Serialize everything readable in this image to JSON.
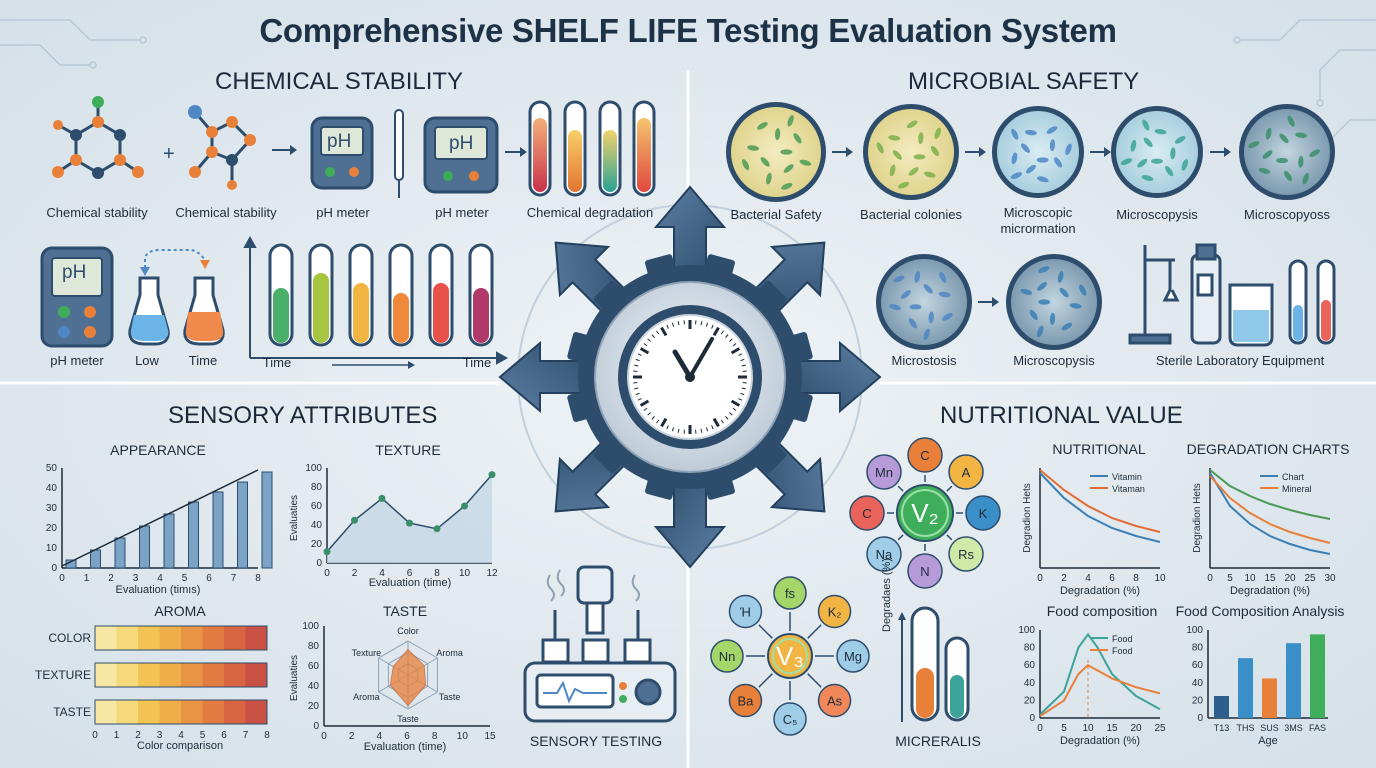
{
  "title": "Comprehensive SHELF LIFE Testing Evaluation System",
  "colors": {
    "background": "#e4ebf0",
    "navy": "#2e4d6d",
    "accent_blue": "#4f86c6",
    "accent_orange": "#e9803a",
    "accent_green": "#3fae5a"
  },
  "chemical": {
    "heading": "CHEMICAL STABILITY",
    "row1": [
      "Chemical stability",
      "Chemical stability",
      "pH meter",
      "pH meter",
      "Chemical degradation"
    ],
    "ph_text": "pH",
    "row2": [
      "pH meter",
      "Low",
      "Time"
    ],
    "time_left": "Time",
    "time_right": "Time"
  },
  "microbial": {
    "heading": "MICROBIAL SAFETY",
    "row1": [
      "Bacterial Safety",
      "Bacterial colonies",
      "Microscopic",
      "micrormation",
      "Microscopysis",
      "Microscopyoss"
    ],
    "row2": [
      "Microstosis",
      "Microscopysis",
      "Sterile Laboratory Equipment"
    ]
  },
  "sensory": {
    "heading": "SENSORY ATTRIBUTES",
    "footer": "SENSORY TESTING"
  },
  "nutrition": {
    "heading": "NUTRITIONAL VALUE",
    "vitamins": [
      "C",
      "A",
      "K",
      "Rs",
      "N",
      "Na",
      "C",
      "Mn"
    ],
    "vitamin_center": "V₂",
    "minerals": [
      "fs",
      "K₂",
      "Mg",
      "As",
      "C₅",
      "Ba",
      "Nn",
      "Ή"
    ],
    "mineral_center": "V₃",
    "tube_ylabel": "Degradaes (%)",
    "tube_label": "MICRERALIS"
  },
  "chart_data": [
    {
      "type": "bar",
      "title": "APPEARANCE",
      "xlabel": "Evaluation (timıs)",
      "x_ticks": [
        "0",
        "1",
        "2",
        "3",
        "4",
        "5",
        "6",
        "7",
        "8"
      ],
      "y_ticks": [
        "50",
        "40",
        "30",
        "20",
        "10",
        "0"
      ],
      "ylim": [
        0,
        50
      ],
      "values": [
        4,
        9,
        15,
        21,
        27,
        33,
        38,
        43,
        48
      ]
    },
    {
      "type": "area",
      "title": "TEXTURE",
      "ylabel": "Evaluaties",
      "xlabel": "Evaluation (time)",
      "x_ticks": [
        "0",
        "2",
        "4",
        "6",
        "8",
        "10",
        "12"
      ],
      "y_ticks": [
        "100",
        "80",
        "60",
        "40",
        "20",
        "0"
      ],
      "ylim": [
        0,
        100
      ],
      "x": [
        0,
        2,
        4,
        6,
        8,
        10,
        12
      ],
      "values": [
        12,
        45,
        68,
        42,
        36,
        60,
        93
      ]
    },
    {
      "type": "heatmap",
      "title": "AROMA",
      "rows": [
        "COLOR",
        "TEXTURE",
        "TASTE"
      ],
      "x_ticks": [
        "0",
        "1",
        "2",
        "3",
        "4",
        "5",
        "6",
        "7",
        "8"
      ],
      "xlabel": "Color comparison",
      "colors": [
        "#f7e7a4",
        "#f6d97a",
        "#f2c454",
        "#eeae49",
        "#e99444",
        "#e27c43",
        "#d76541",
        "#c85044"
      ]
    },
    {
      "type": "radar",
      "title": "TASTE",
      "ylabel": "Evaluaties",
      "xlabel": "Evaluation (time)",
      "x_ticks": [
        "0",
        "2",
        "4",
        "6",
        "8",
        "10",
        "15"
      ],
      "y_ticks": [
        "100",
        "80",
        "60",
        "40",
        "20",
        "0"
      ],
      "axes": [
        "Color",
        "Aroma",
        "Taste",
        "Taste",
        "Aroma",
        "Texture"
      ],
      "values": [
        0.75,
        0.55,
        0.6,
        0.9,
        0.6,
        0.5
      ]
    },
    {
      "type": "line",
      "title": "NUTRITIONAL",
      "ylabel": "Degradion Hets",
      "xlabel": "Degradation (%)",
      "x_ticks": [
        "0",
        "2",
        "4",
        "6",
        "8",
        "10"
      ],
      "series": [
        {
          "name": "Vitamin",
          "color": "#3a7fb5",
          "values": [
            95,
            70,
            52,
            40,
            32,
            26
          ]
        },
        {
          "name": "Vitaman",
          "color": "#e36a33",
          "values": [
            98,
            78,
            62,
            50,
            42,
            36
          ]
        }
      ]
    },
    {
      "type": "line",
      "title": "DEGRADATION CHARTS",
      "ylabel": "Degradion Hets",
      "xlabel": "Degradation (%)",
      "x_ticks": [
        "0",
        "5",
        "10",
        "15",
        "20",
        "25",
        "30"
      ],
      "series": [
        {
          "name": "Chart",
          "color": "#3a7fb5",
          "values": [
            95,
            62,
            44,
            32,
            24,
            18,
            14
          ]
        },
        {
          "name": "Mineral",
          "color": "#e9803a",
          "values": [
            92,
            70,
            55,
            44,
            36,
            30,
            25
          ]
        },
        {
          "name": "",
          "color": "#4a9a55",
          "values": [
            98,
            82,
            72,
            64,
            58,
            53,
            49
          ]
        }
      ]
    },
    {
      "type": "line",
      "title": "Food composition",
      "xlabel": "Degradation (%)",
      "x_ticks": [
        "0",
        "5",
        "10",
        "15",
        "20",
        "25"
      ],
      "y_ticks": [
        "100",
        "80",
        "60",
        "40",
        "20",
        "0"
      ],
      "ylim": [
        0,
        100
      ],
      "x": [
        0,
        5,
        8,
        10,
        12,
        15,
        20,
        25
      ],
      "series": [
        {
          "name": "Food",
          "color": "#3ba398",
          "values": [
            4,
            30,
            80,
            95,
            80,
            50,
            25,
            10
          ]
        },
        {
          "name": "Food",
          "color": "#e9803a",
          "values": [
            2,
            20,
            50,
            60,
            54,
            45,
            35,
            28
          ]
        }
      ]
    },
    {
      "type": "bar",
      "title": "Food Composition Analysis",
      "xlabel": "Age",
      "categories": [
        "T13",
        "THS",
        "SUS",
        "3MS",
        "FAS"
      ],
      "y_ticks": [
        "100",
        "80",
        "60",
        "40",
        "20",
        "0"
      ],
      "ylim": [
        0,
        100
      ],
      "values": [
        25,
        68,
        45,
        85,
        95
      ],
      "colors": [
        "#2d5f8d",
        "#3a8fc8",
        "#e9803a",
        "#3a8fc8",
        "#3fae5a"
      ]
    }
  ]
}
